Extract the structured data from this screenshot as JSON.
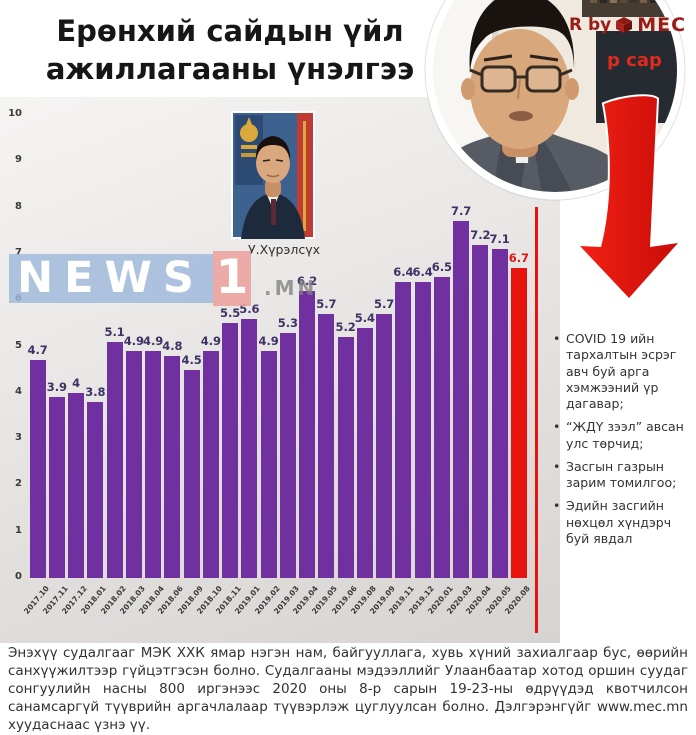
{
  "header": {
    "title": "Ерөнхий сайдын үйл ажиллагааны үнэлгээ"
  },
  "branding": {
    "partial_label": "R by",
    "brand": "MEC",
    "subtitle": "р сар"
  },
  "pm_photo": {
    "caption": "У.Хүрэлсүх"
  },
  "watermark": {
    "news": "NEWS",
    "one": "1",
    "domain": ".MN"
  },
  "chart_data": {
    "type": "bar",
    "title": "Ерөнхий сайдын үйл ажиллагааны үнэлгээ",
    "categories": [
      "2017.10",
      "2017.11",
      "2017.12",
      "2018.01",
      "2018.02",
      "2018.03",
      "2018.04",
      "2018.06",
      "2018.09",
      "2018.10",
      "2018.11",
      "2019.01",
      "2019.02",
      "2019.03",
      "2019.04",
      "2019.05",
      "2019.06",
      "2019.08",
      "2019.09",
      "2019.11",
      "2019.12",
      "2020.01",
      "2020.03",
      "2020.04",
      "2020.05",
      "2020.08"
    ],
    "values": [
      4.7,
      3.9,
      4,
      3.8,
      5.1,
      4.9,
      4.9,
      4.8,
      4.5,
      4.9,
      5.5,
      5.6,
      4.9,
      5.3,
      6.2,
      5.7,
      5.2,
      5.4,
      5.7,
      6.4,
      6.4,
      6.5,
      7.7,
      7.2,
      7.1,
      6.7
    ],
    "ylim": [
      0,
      10
    ],
    "yticks": [
      0,
      1,
      2,
      3,
      4,
      5,
      6,
      7,
      8,
      9,
      10
    ],
    "bar_color": "#7030a0",
    "highlight_color": "#e8120e",
    "highlight_index": 25,
    "label_color": "#3e3266",
    "grid": false,
    "legend": "none"
  },
  "bullets": {
    "items": [
      "COVID 19 ийн тархалтын эсрэг авч буй арга хэмжээний үр дагавар;",
      "“ЖДҮ зээл” авсан улс төрчид;",
      "Засгын газрын зарим томилгоо;",
      "Эдийн засгийн нөхцөл хүндэрч буй явдал"
    ]
  },
  "footer": {
    "text": "Энэхүү судалгааг МЭК ХХК ямар нэгэн нам, байгууллага, хувь хүний захиалгаар бус, өөрийн санхүүжилтээр гүйцэтгэсэн болно. Судалгааны мэдээллийг Улаанбаатар хотод оршин суудаг сонгуулийн насны 800 иргэнээс 2020 оны 8-р сарын 19-23-ны өдрүүдэд квотчилсон санамсаргүй түүврийн аргачлалаар түүвэрлэж цуглуулсан болно. Дэлгэрэнгүйг www.mec.mn хуудаснаас үзнэ үү."
  }
}
